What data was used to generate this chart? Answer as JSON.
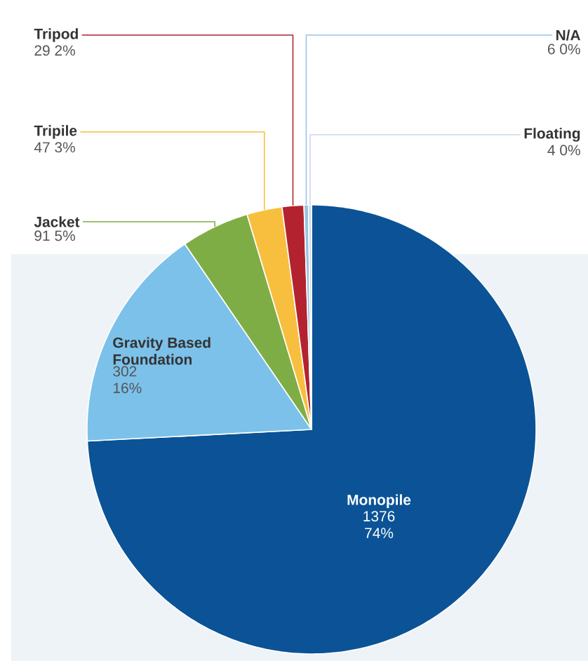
{
  "chart_data": {
    "type": "pie",
    "categories": [
      "Monopile",
      "Gravity Based Foundation",
      "Jacket",
      "Tripile",
      "Tripod",
      "N/A",
      "Floating"
    ],
    "values": [
      1376,
      302,
      91,
      47,
      29,
      6,
      4
    ],
    "colors": [
      "#0b5396",
      "#7cc1ea",
      "#7fad45",
      "#f8bf3f",
      "#b3232f",
      "#9cc3e4",
      "#c9d9ea"
    ],
    "value_labels": [
      "1376 74%",
      "302 16%",
      "91 5%",
      "47 3%",
      "29 2%",
      "6 0%",
      "4 0%"
    ]
  }
}
